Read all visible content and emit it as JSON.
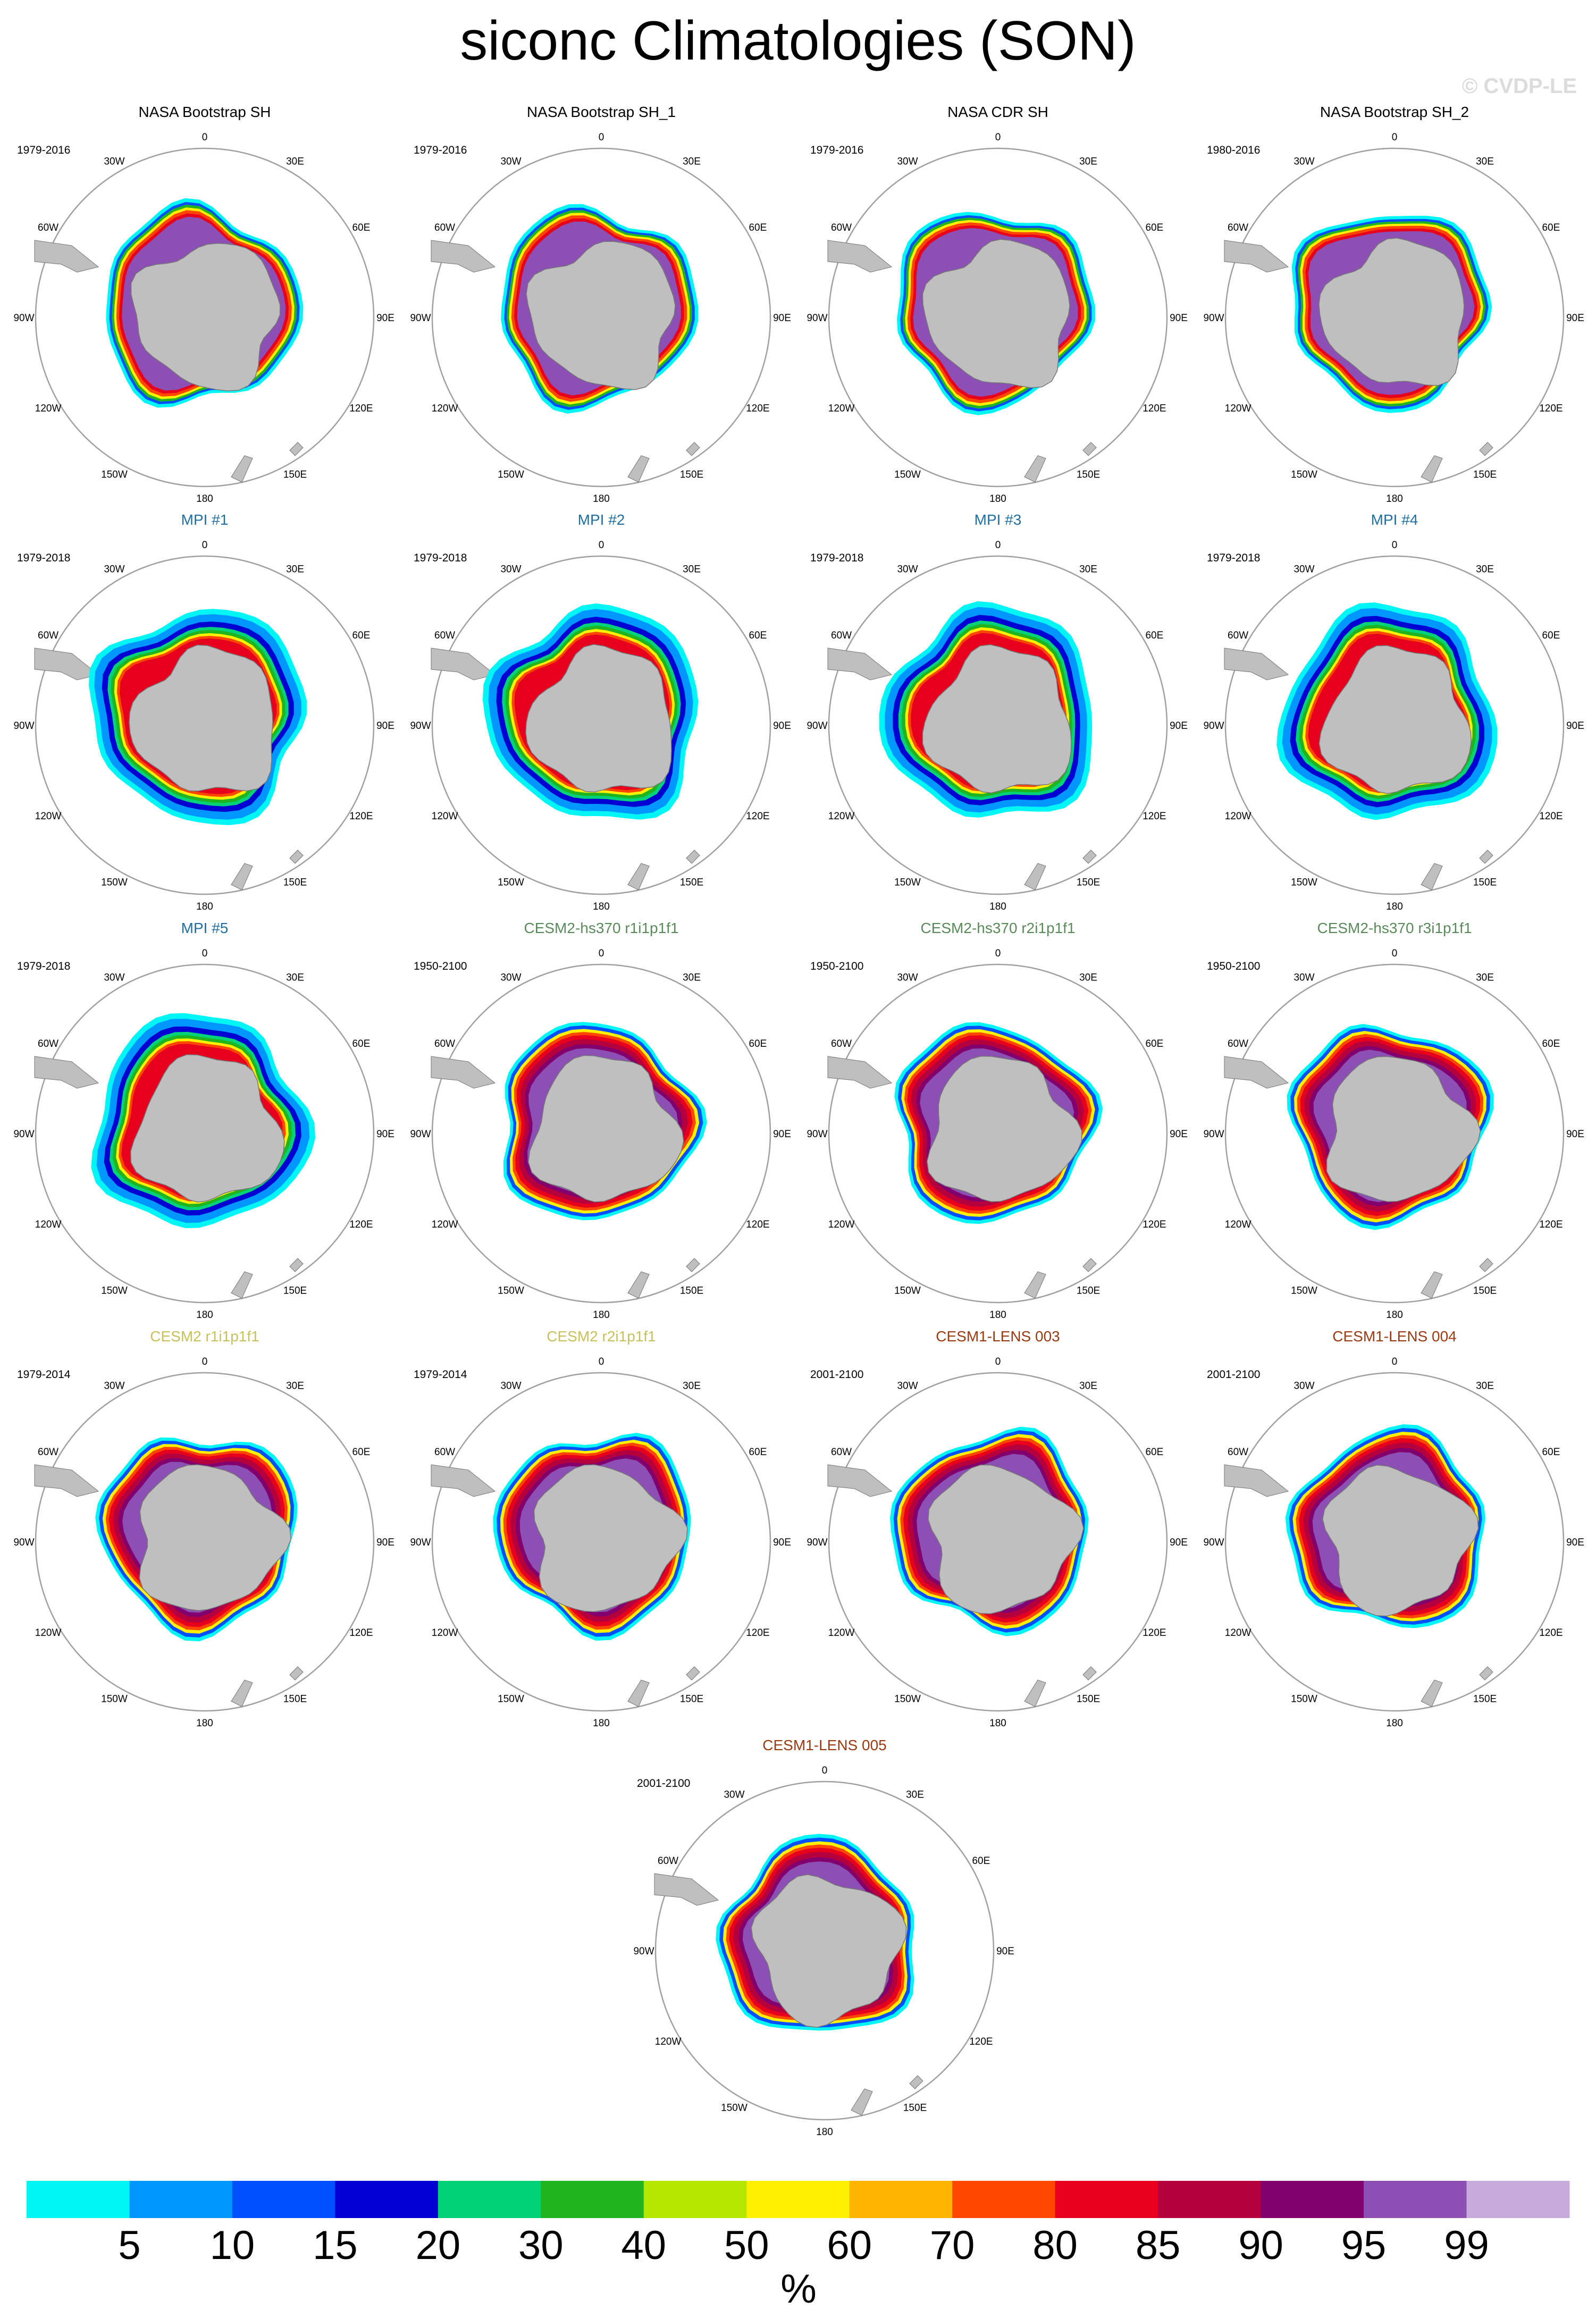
{
  "page": {
    "title": "siconc Climatologies (SON)",
    "watermark": "© CVDP-LE"
  },
  "lon_labels": [
    "0",
    "30E",
    "60E",
    "90E",
    "120E",
    "150E",
    "180",
    "150W",
    "120W",
    "90W",
    "60W",
    "30W"
  ],
  "panels": [
    {
      "title": "NASA Bootstrap SH",
      "period": "1979-2016",
      "title_color": "#000000",
      "style": "obs"
    },
    {
      "title": "NASA Bootstrap SH_1",
      "period": "1979-2016",
      "title_color": "#000000",
      "style": "obs"
    },
    {
      "title": "NASA CDR SH",
      "period": "1979-2016",
      "title_color": "#000000",
      "style": "obs"
    },
    {
      "title": "NASA Bootstrap SH_2",
      "period": "1980-2016",
      "title_color": "#000000",
      "style": "obs"
    },
    {
      "title": "MPI #1",
      "period": "1979-2018",
      "title_color": "#1f6fa0",
      "style": "mpi"
    },
    {
      "title": "MPI #2",
      "period": "1979-2018",
      "title_color": "#1f6fa0",
      "style": "mpi"
    },
    {
      "title": "MPI #3",
      "period": "1979-2018",
      "title_color": "#1f6fa0",
      "style": "mpi"
    },
    {
      "title": "MPI #4",
      "period": "1979-2018",
      "title_color": "#1f6fa0",
      "style": "mpi"
    },
    {
      "title": "MPI #5",
      "period": "1979-2018",
      "title_color": "#1f6fa0",
      "style": "mpi"
    },
    {
      "title": "CESM2-hs370 r1i1p1f1",
      "period": "1950-2100",
      "title_color": "#5a8a5a",
      "style": "cesm"
    },
    {
      "title": "CESM2-hs370 r2i1p1f1",
      "period": "1950-2100",
      "title_color": "#5a8a5a",
      "style": "cesm"
    },
    {
      "title": "CESM2-hs370 r3i1p1f1",
      "period": "1950-2100",
      "title_color": "#5a8a5a",
      "style": "cesm"
    },
    {
      "title": "CESM2 r1i1p1f1",
      "period": "1979-2014",
      "title_color": "#c8c05a",
      "style": "cesm"
    },
    {
      "title": "CESM2 r2i1p1f1",
      "period": "1979-2014",
      "title_color": "#c8c05a",
      "style": "cesm"
    },
    {
      "title": "CESM1-LENS 003",
      "period": "2001-2100",
      "title_color": "#9a3a10",
      "style": "cesm"
    },
    {
      "title": "CESM1-LENS 004",
      "period": "2001-2100",
      "title_color": "#9a3a10",
      "style": "cesm"
    },
    {
      "title": "CESM1-LENS 005",
      "period": "2001-2100",
      "title_color": "#9a3a10",
      "style": "cesm"
    }
  ],
  "colorbar": {
    "unit": "%",
    "colors": [
      "#00f5f5",
      "#0096ff",
      "#0050ff",
      "#0000d2",
      "#00d278",
      "#20b41e",
      "#b4e600",
      "#fff000",
      "#ffb400",
      "#ff4600",
      "#e6001e",
      "#b4003c",
      "#82006e",
      "#8c50b4",
      "#c8aadc"
    ],
    "labels": [
      "5",
      "10",
      "15",
      "20",
      "30",
      "40",
      "50",
      "60",
      "70",
      "80",
      "85",
      "90",
      "95",
      "99"
    ]
  }
}
